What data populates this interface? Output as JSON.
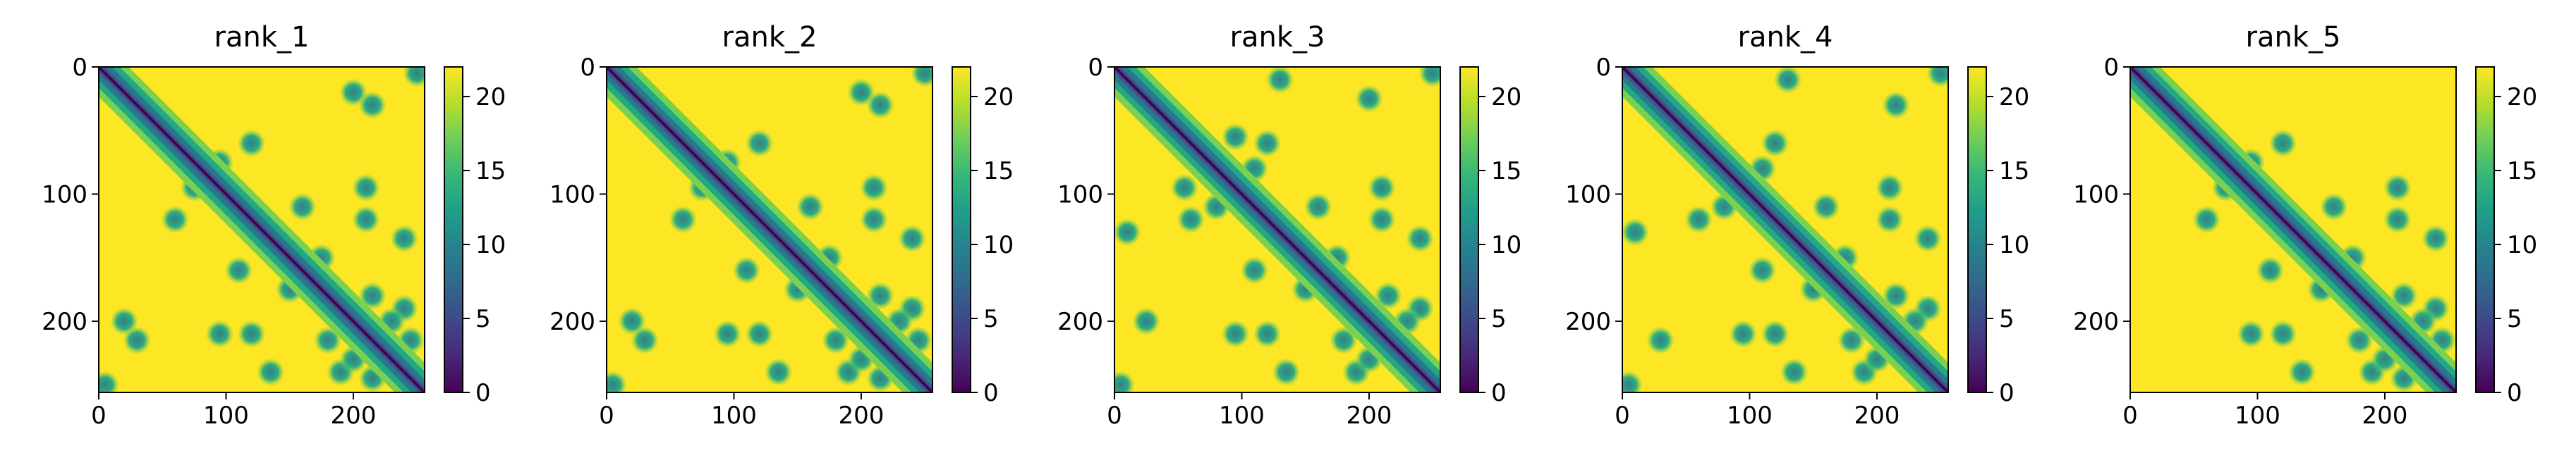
{
  "figure": {
    "colorbar": {
      "colormap": "viridis",
      "ticks": [
        0,
        5,
        10,
        15,
        20
      ],
      "vmin": 0,
      "vmax": 22,
      "colors": [
        "#440154",
        "#482878",
        "#3e4989",
        "#31688e",
        "#26828e",
        "#1f9e89",
        "#35b779",
        "#6ece58",
        "#b5de2b",
        "#fde725"
      ]
    }
  },
  "chart_data": [
    {
      "type": "heatmap",
      "title": "rank_1",
      "xlabel": "",
      "ylabel": "",
      "xlim": [
        0,
        256
      ],
      "ylim": [
        256,
        0
      ],
      "xticks": [
        0,
        100,
        200
      ],
      "yticks": [
        0,
        100,
        200
      ],
      "colorbar_range": [
        0,
        22
      ],
      "contacts": [
        [
          20,
          200
        ],
        [
          30,
          215
        ],
        [
          60,
          120
        ],
        [
          75,
          95
        ],
        [
          95,
          210
        ],
        [
          110,
          160
        ],
        [
          120,
          210
        ],
        [
          135,
          240
        ],
        [
          150,
          175
        ],
        [
          180,
          215
        ],
        [
          190,
          240
        ],
        [
          200,
          230
        ],
        [
          215,
          245
        ],
        [
          5,
          250
        ]
      ]
    },
    {
      "type": "heatmap",
      "title": "rank_2",
      "xlabel": "",
      "ylabel": "",
      "xlim": [
        0,
        256
      ],
      "ylim": [
        256,
        0
      ],
      "xticks": [
        0,
        100,
        200
      ],
      "yticks": [
        0,
        100,
        200
      ],
      "colorbar_range": [
        0,
        22
      ],
      "contacts": [
        [
          20,
          200
        ],
        [
          30,
          215
        ],
        [
          60,
          120
        ],
        [
          75,
          95
        ],
        [
          95,
          210
        ],
        [
          110,
          160
        ],
        [
          120,
          210
        ],
        [
          135,
          240
        ],
        [
          150,
          175
        ],
        [
          180,
          215
        ],
        [
          190,
          240
        ],
        [
          200,
          230
        ],
        [
          215,
          245
        ],
        [
          5,
          250
        ]
      ]
    },
    {
      "type": "heatmap",
      "title": "rank_3",
      "xlabel": "",
      "ylabel": "",
      "xlim": [
        0,
        256
      ],
      "ylim": [
        256,
        0
      ],
      "xticks": [
        0,
        100,
        200
      ],
      "yticks": [
        0,
        100,
        200
      ],
      "colorbar_range": [
        0,
        22
      ],
      "contacts": [
        [
          10,
          130
        ],
        [
          25,
          200
        ],
        [
          55,
          95
        ],
        [
          60,
          120
        ],
        [
          80,
          110
        ],
        [
          95,
          210
        ],
        [
          110,
          160
        ],
        [
          120,
          210
        ],
        [
          135,
          240
        ],
        [
          150,
          175
        ],
        [
          180,
          215
        ],
        [
          190,
          240
        ],
        [
          200,
          230
        ],
        [
          5,
          250
        ]
      ]
    },
    {
      "type": "heatmap",
      "title": "rank_4",
      "xlabel": "",
      "ylabel": "",
      "xlim": [
        0,
        256
      ],
      "ylim": [
        256,
        0
      ],
      "xticks": [
        0,
        100,
        200
      ],
      "yticks": [
        0,
        100,
        200
      ],
      "colorbar_range": [
        0,
        22
      ],
      "contacts": [
        [
          10,
          130
        ],
        [
          30,
          215
        ],
        [
          60,
          120
        ],
        [
          80,
          110
        ],
        [
          95,
          210
        ],
        [
          110,
          160
        ],
        [
          120,
          210
        ],
        [
          135,
          240
        ],
        [
          150,
          175
        ],
        [
          180,
          215
        ],
        [
          190,
          240
        ],
        [
          200,
          230
        ],
        [
          5,
          250
        ]
      ]
    },
    {
      "type": "heatmap",
      "title": "rank_5",
      "xlabel": "",
      "ylabel": "",
      "xlim": [
        0,
        256
      ],
      "ylim": [
        256,
        0
      ],
      "xticks": [
        0,
        100,
        200
      ],
      "yticks": [
        0,
        100,
        200
      ],
      "colorbar_range": [
        0,
        22
      ],
      "contacts": [
        [
          60,
          120
        ],
        [
          75,
          95
        ],
        [
          95,
          210
        ],
        [
          110,
          160
        ],
        [
          120,
          210
        ],
        [
          135,
          240
        ],
        [
          150,
          175
        ],
        [
          180,
          215
        ],
        [
          190,
          240
        ],
        [
          200,
          230
        ],
        [
          215,
          245
        ]
      ]
    }
  ]
}
